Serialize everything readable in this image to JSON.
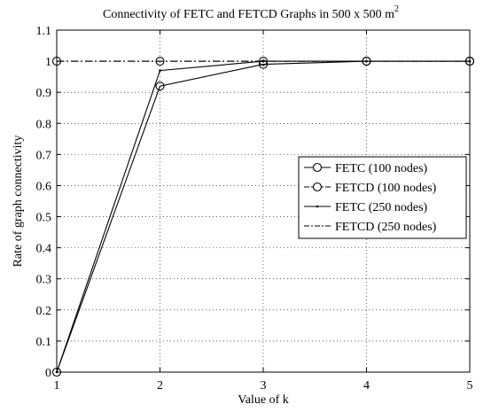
{
  "chart_data": {
    "type": "line",
    "title": {
      "main": "Connectivity of FETC and FETCD Graphs in 500 x 500 m",
      "superscript": "2"
    },
    "xlabel": "Value of k",
    "ylabel": "Rate of graph connectivity",
    "xlim": [
      1,
      5
    ],
    "ylim": [
      0,
      1.1
    ],
    "x_ticks": [
      1,
      2,
      3,
      4,
      5
    ],
    "y_ticks": [
      0,
      0.1,
      0.2,
      0.3,
      0.4,
      0.5,
      0.6,
      0.7,
      0.8,
      0.9,
      1,
      1.1
    ],
    "grid": true,
    "legend_position": "right",
    "x": [
      1,
      2,
      3,
      4,
      5
    ],
    "series": [
      {
        "name": "FETC (100 nodes)",
        "values": [
          0,
          0.92,
          0.99,
          1,
          1
        ],
        "line": "solid",
        "marker": "circle"
      },
      {
        "name": "FETCD (100 nodes)",
        "values": [
          1,
          1,
          1,
          1,
          1
        ],
        "line": "dashdot",
        "marker": "circle"
      },
      {
        "name": "FETC (250 nodes)",
        "values": [
          0,
          0.97,
          1,
          1,
          1
        ],
        "line": "solid",
        "marker": "point"
      },
      {
        "name": "FETCD (250 nodes)",
        "values": [
          1,
          1,
          1,
          1,
          1
        ],
        "line": "dashdot",
        "marker": "none"
      }
    ],
    "colors": {
      "line": "#000000",
      "grid": "#000000",
      "background": "#ffffff"
    }
  }
}
